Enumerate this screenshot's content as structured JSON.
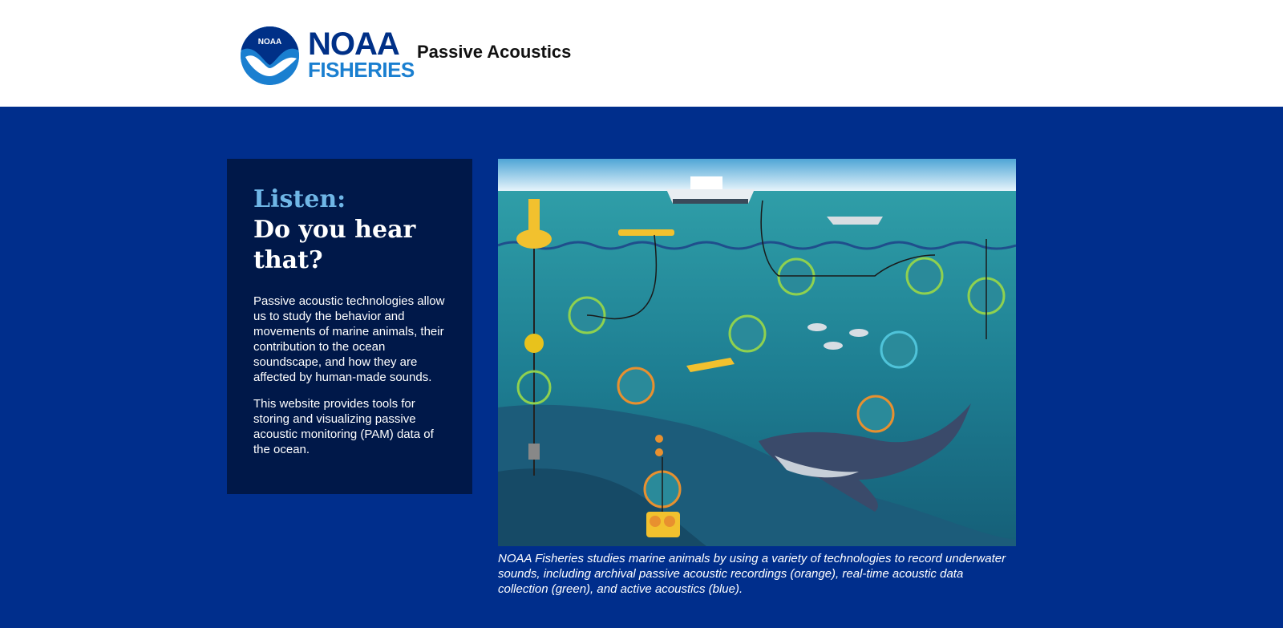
{
  "header": {
    "logo": {
      "text_top": "NOAA",
      "text_bottom": "FISHERIES",
      "badge": "NOAA"
    },
    "site_title": "Passive Acoustics"
  },
  "hero": {
    "heading_accent": "Listen:",
    "heading_main": "Do you hear that?",
    "paragraph_1": "Passive acoustic technologies allow us to study the behavior and movements of marine animals, their contribution to the ocean soundscape, and how they are affected by human-made sounds.",
    "paragraph_2": "This website provides tools for storing and visualizing passive acoustic monitoring (PAM) data of the ocean.",
    "caption": "NOAA Fisheries studies marine animals by using a variety of technologies to record underwater sounds, including archival passive acoustic recordings (orange), real-time acoustic data collection (green), and active acoustics (blue)."
  },
  "colors": {
    "header_bg": "#ffffff",
    "hero_bg": "#002e8c",
    "card_bg": "#001849",
    "accent": "#6fb6e6",
    "noaa_navy": "#003087",
    "noaa_blue": "#1a7fd0",
    "archival": "#e8902f",
    "realtime": "#8fd14f",
    "active": "#4fc3d9"
  },
  "icons": {
    "logo": "noaa-bird-logo",
    "illustration": "ocean-acoustics-illustration"
  }
}
